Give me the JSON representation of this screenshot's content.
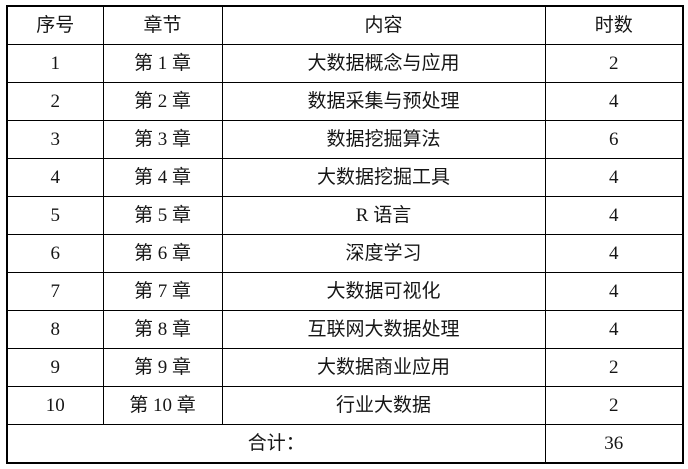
{
  "table": {
    "headers": {
      "no": "序号",
      "chapter": "章节",
      "content": "内容",
      "hours": "时数"
    },
    "rows": [
      {
        "no": "1",
        "chapter": "第 1 章",
        "content": "大数据概念与应用",
        "hours": "2"
      },
      {
        "no": "2",
        "chapter": "第 2 章",
        "content": "数据采集与预处理",
        "hours": "4"
      },
      {
        "no": "3",
        "chapter": "第 3 章",
        "content": "数据挖掘算法",
        "hours": "6"
      },
      {
        "no": "4",
        "chapter": "第 4 章",
        "content": "大数据挖掘工具",
        "hours": "4"
      },
      {
        "no": "5",
        "chapter": "第 5 章",
        "content": "R 语言",
        "hours": "4"
      },
      {
        "no": "6",
        "chapter": "第 6 章",
        "content": "深度学习",
        "hours": "4"
      },
      {
        "no": "7",
        "chapter": "第 7 章",
        "content": "大数据可视化",
        "hours": "4"
      },
      {
        "no": "8",
        "chapter": "第 8 章",
        "content": "互联网大数据处理",
        "hours": "4"
      },
      {
        "no": "9",
        "chapter": "第 9 章",
        "content": "大数据商业应用",
        "hours": "2"
      },
      {
        "no": "10",
        "chapter": "第 10 章",
        "content": "行业大数据",
        "hours": "2"
      }
    ],
    "footer": {
      "label": "合计：",
      "total": "36"
    }
  }
}
